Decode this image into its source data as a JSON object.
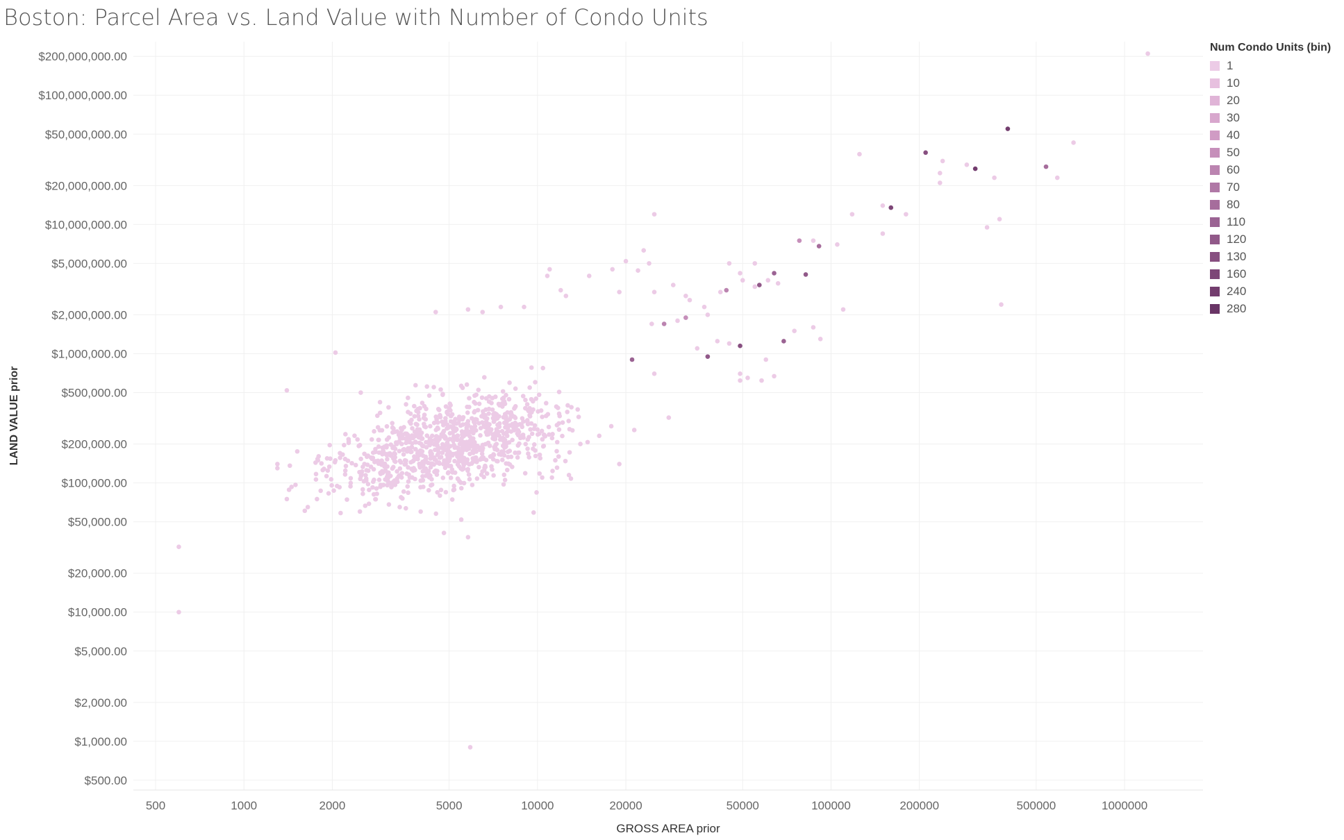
{
  "title": "Boston: Parcel Area vs. Land Value with Number of Condo Units",
  "legend": {
    "title": "Num Condo Units (bin)",
    "items": [
      {
        "label": "1",
        "color": "#eccbe6"
      },
      {
        "label": "10",
        "color": "#e7c0df"
      },
      {
        "label": "20",
        "color": "#e0b4d7"
      },
      {
        "label": "30",
        "color": "#d8a7cd"
      },
      {
        "label": "40",
        "color": "#d09bc4"
      },
      {
        "label": "50",
        "color": "#c68fba"
      },
      {
        "label": "60",
        "color": "#bb84b0"
      },
      {
        "label": "70",
        "color": "#b078a6"
      },
      {
        "label": "80",
        "color": "#a66d9c"
      },
      {
        "label": "110",
        "color": "#9b6393"
      },
      {
        "label": "120",
        "color": "#915989"
      },
      {
        "label": "130",
        "color": "#874f80"
      },
      {
        "label": "160",
        "color": "#7d4677"
      },
      {
        "label": "240",
        "color": "#733d6e"
      },
      {
        "label": "280",
        "color": "#693566"
      }
    ]
  },
  "chart_data": {
    "type": "scatter",
    "title": "Boston: Parcel Area vs. Land Value with Number of Condo Units",
    "xlabel": "GROSS AREA prior",
    "ylabel": "LAND VALUE prior",
    "x_scale": "log",
    "y_scale": "log",
    "xlim": [
      420,
      1850000
    ],
    "ylim": [
      420,
      260000000
    ],
    "grid": true,
    "legend_position": "right",
    "x_ticks": [
      {
        "value": 500,
        "label": "500"
      },
      {
        "value": 1000,
        "label": "1000"
      },
      {
        "value": 2000,
        "label": "2000"
      },
      {
        "value": 5000,
        "label": "5000"
      },
      {
        "value": 10000,
        "label": "10000"
      },
      {
        "value": 20000,
        "label": "20000"
      },
      {
        "value": 50000,
        "label": "50000"
      },
      {
        "value": 100000,
        "label": "100000"
      },
      {
        "value": 200000,
        "label": "200000"
      },
      {
        "value": 500000,
        "label": "500000"
      },
      {
        "value": 1000000,
        "label": "1000000"
      }
    ],
    "y_ticks": [
      {
        "value": 500,
        "label": "$500.00"
      },
      {
        "value": 1000,
        "label": "$1,000.00"
      },
      {
        "value": 2000,
        "label": "$2,000.00"
      },
      {
        "value": 5000,
        "label": "$5,000.00"
      },
      {
        "value": 10000,
        "label": "$10,000.00"
      },
      {
        "value": 20000,
        "label": "$20,000.00"
      },
      {
        "value": 50000,
        "label": "$50,000.00"
      },
      {
        "value": 100000,
        "label": "$100,000.00"
      },
      {
        "value": 200000,
        "label": "$200,000.00"
      },
      {
        "value": 500000,
        "label": "$500,000.00"
      },
      {
        "value": 1000000,
        "label": "$1,000,000.00"
      },
      {
        "value": 2000000,
        "label": "$2,000,000.00"
      },
      {
        "value": 5000000,
        "label": "$5,000,000.00"
      },
      {
        "value": 10000000,
        "label": "$10,000,000.00"
      },
      {
        "value": 20000000,
        "label": "$20,000,000.00"
      },
      {
        "value": 50000000,
        "label": "$50,000,000.00"
      },
      {
        "value": 100000000,
        "label": "$100,000,000.00"
      },
      {
        "value": 200000000,
        "label": "$200,000,000.00"
      }
    ],
    "points": [
      {
        "x": 1200000,
        "y": 210000000,
        "units": "1"
      },
      {
        "x": 400000,
        "y": 55000000,
        "units": "240"
      },
      {
        "x": 670000,
        "y": 43000000,
        "units": "1"
      },
      {
        "x": 210000,
        "y": 36000000,
        "units": "130"
      },
      {
        "x": 125000,
        "y": 35000000,
        "units": "1"
      },
      {
        "x": 240000,
        "y": 31000000,
        "units": "1"
      },
      {
        "x": 290000,
        "y": 29000000,
        "units": "1"
      },
      {
        "x": 310000,
        "y": 27000000,
        "units": "240"
      },
      {
        "x": 540000,
        "y": 28000000,
        "units": "80"
      },
      {
        "x": 235000,
        "y": 25000000,
        "units": "1"
      },
      {
        "x": 360000,
        "y": 23000000,
        "units": "1"
      },
      {
        "x": 590000,
        "y": 23000000,
        "units": "1"
      },
      {
        "x": 235000,
        "y": 21000000,
        "units": "1"
      },
      {
        "x": 150000,
        "y": 14000000,
        "units": "1"
      },
      {
        "x": 160000,
        "y": 13500000,
        "units": "160"
      },
      {
        "x": 118000,
        "y": 12000000,
        "units": "1"
      },
      {
        "x": 180000,
        "y": 12000000,
        "units": "1"
      },
      {
        "x": 375000,
        "y": 11000000,
        "units": "1"
      },
      {
        "x": 340000,
        "y": 9500000,
        "units": "1"
      },
      {
        "x": 150000,
        "y": 8500000,
        "units": "1"
      },
      {
        "x": 78000,
        "y": 7500000,
        "units": "50"
      },
      {
        "x": 87000,
        "y": 7500000,
        "units": "1"
      },
      {
        "x": 91000,
        "y": 6800000,
        "units": "80"
      },
      {
        "x": 105000,
        "y": 7000000,
        "units": "1"
      },
      {
        "x": 25000,
        "y": 12000000,
        "units": "1"
      },
      {
        "x": 23000,
        "y": 6300000,
        "units": "1"
      },
      {
        "x": 20000,
        "y": 5200000,
        "units": "1"
      },
      {
        "x": 24000,
        "y": 5000000,
        "units": "1"
      },
      {
        "x": 45000,
        "y": 5000000,
        "units": "1"
      },
      {
        "x": 55000,
        "y": 5000000,
        "units": "1"
      },
      {
        "x": 11000,
        "y": 4500000,
        "units": "1"
      },
      {
        "x": 18000,
        "y": 4500000,
        "units": "1"
      },
      {
        "x": 22000,
        "y": 4400000,
        "units": "1"
      },
      {
        "x": 10800,
        "y": 4000000,
        "units": "1"
      },
      {
        "x": 15000,
        "y": 4000000,
        "units": "1"
      },
      {
        "x": 49000,
        "y": 4200000,
        "units": "1"
      },
      {
        "x": 64000,
        "y": 4200000,
        "units": "110"
      },
      {
        "x": 82000,
        "y": 4100000,
        "units": "120"
      },
      {
        "x": 61000,
        "y": 3700000,
        "units": "1"
      },
      {
        "x": 50000,
        "y": 3700000,
        "units": "1"
      },
      {
        "x": 66000,
        "y": 3500000,
        "units": "1"
      },
      {
        "x": 57000,
        "y": 3400000,
        "units": "120"
      },
      {
        "x": 55000,
        "y": 3300000,
        "units": "1"
      },
      {
        "x": 29000,
        "y": 3400000,
        "units": "1"
      },
      {
        "x": 44000,
        "y": 3100000,
        "units": "60"
      },
      {
        "x": 42000,
        "y": 3000000,
        "units": "1"
      },
      {
        "x": 25000,
        "y": 3000000,
        "units": "1"
      },
      {
        "x": 12000,
        "y": 3100000,
        "units": "1"
      },
      {
        "x": 19000,
        "y": 3000000,
        "units": "1"
      },
      {
        "x": 32000,
        "y": 2800000,
        "units": "1"
      },
      {
        "x": 12500,
        "y": 2800000,
        "units": "1"
      },
      {
        "x": 33000,
        "y": 2600000,
        "units": "1"
      },
      {
        "x": 37000,
        "y": 2300000,
        "units": "1"
      },
      {
        "x": 38000,
        "y": 2000000,
        "units": "1"
      },
      {
        "x": 9000,
        "y": 2300000,
        "units": "1"
      },
      {
        "x": 7500,
        "y": 2300000,
        "units": "1"
      },
      {
        "x": 5800,
        "y": 2200000,
        "units": "1"
      },
      {
        "x": 4500,
        "y": 2100000,
        "units": "1"
      },
      {
        "x": 6500,
        "y": 2100000,
        "units": "1"
      },
      {
        "x": 110000,
        "y": 2200000,
        "units": "1"
      },
      {
        "x": 380000,
        "y": 2400000,
        "units": "1"
      },
      {
        "x": 24500,
        "y": 1700000,
        "units": "1"
      },
      {
        "x": 27000,
        "y": 1700000,
        "units": "60"
      },
      {
        "x": 30000,
        "y": 1800000,
        "units": "1"
      },
      {
        "x": 32000,
        "y": 1900000,
        "units": "50"
      },
      {
        "x": 87000,
        "y": 1600000,
        "units": "1"
      },
      {
        "x": 75000,
        "y": 1500000,
        "units": "1"
      },
      {
        "x": 92000,
        "y": 1300000,
        "units": "1"
      },
      {
        "x": 69000,
        "y": 1250000,
        "units": "110"
      },
      {
        "x": 41000,
        "y": 1250000,
        "units": "1"
      },
      {
        "x": 45000,
        "y": 1200000,
        "units": "1"
      },
      {
        "x": 49000,
        "y": 1150000,
        "units": "130"
      },
      {
        "x": 35000,
        "y": 1100000,
        "units": "1"
      },
      {
        "x": 21000,
        "y": 900000,
        "units": "110"
      },
      {
        "x": 38000,
        "y": 950000,
        "units": "120"
      },
      {
        "x": 60000,
        "y": 900000,
        "units": "1"
      },
      {
        "x": 49000,
        "y": 700000,
        "units": "1"
      },
      {
        "x": 52000,
        "y": 650000,
        "units": "1"
      },
      {
        "x": 49000,
        "y": 620000,
        "units": "1"
      },
      {
        "x": 58000,
        "y": 620000,
        "units": "1"
      },
      {
        "x": 64000,
        "y": 670000,
        "units": "1"
      },
      {
        "x": 25000,
        "y": 700000,
        "units": "1"
      },
      {
        "x": 28000,
        "y": 320000,
        "units": "1"
      },
      {
        "x": 2050,
        "y": 1020000,
        "units": "1"
      },
      {
        "x": 1400,
        "y": 520000,
        "units": "1"
      },
      {
        "x": 2500,
        "y": 500000,
        "units": "1"
      },
      {
        "x": 1300,
        "y": 140000,
        "units": "1"
      },
      {
        "x": 1300,
        "y": 130000,
        "units": "1"
      },
      {
        "x": 1400,
        "y": 75000,
        "units": "1"
      },
      {
        "x": 1650,
        "y": 65000,
        "units": "1"
      },
      {
        "x": 4000,
        "y": 60000,
        "units": "1"
      },
      {
        "x": 5500,
        "y": 52000,
        "units": "1"
      },
      {
        "x": 4800,
        "y": 41000,
        "units": "1"
      },
      {
        "x": 5800,
        "y": 38000,
        "units": "1"
      },
      {
        "x": 9700,
        "y": 59000,
        "units": "1"
      },
      {
        "x": 11200,
        "y": 110000,
        "units": "1"
      },
      {
        "x": 12800,
        "y": 115000,
        "units": "1"
      },
      {
        "x": 13000,
        "y": 108000,
        "units": "1"
      },
      {
        "x": 19000,
        "y": 140000,
        "units": "1"
      },
      {
        "x": 11800,
        "y": 160000,
        "units": "1"
      },
      {
        "x": 14000,
        "y": 200000,
        "units": "1"
      },
      {
        "x": 600,
        "y": 32000,
        "units": "1"
      },
      {
        "x": 600,
        "y": 10000,
        "units": "1"
      },
      {
        "x": 5900,
        "y": 900,
        "units": "1"
      }
    ],
    "dense_cluster_center": {
      "x": 5000,
      "y": 200000
    },
    "approx_point_count": 1100
  }
}
